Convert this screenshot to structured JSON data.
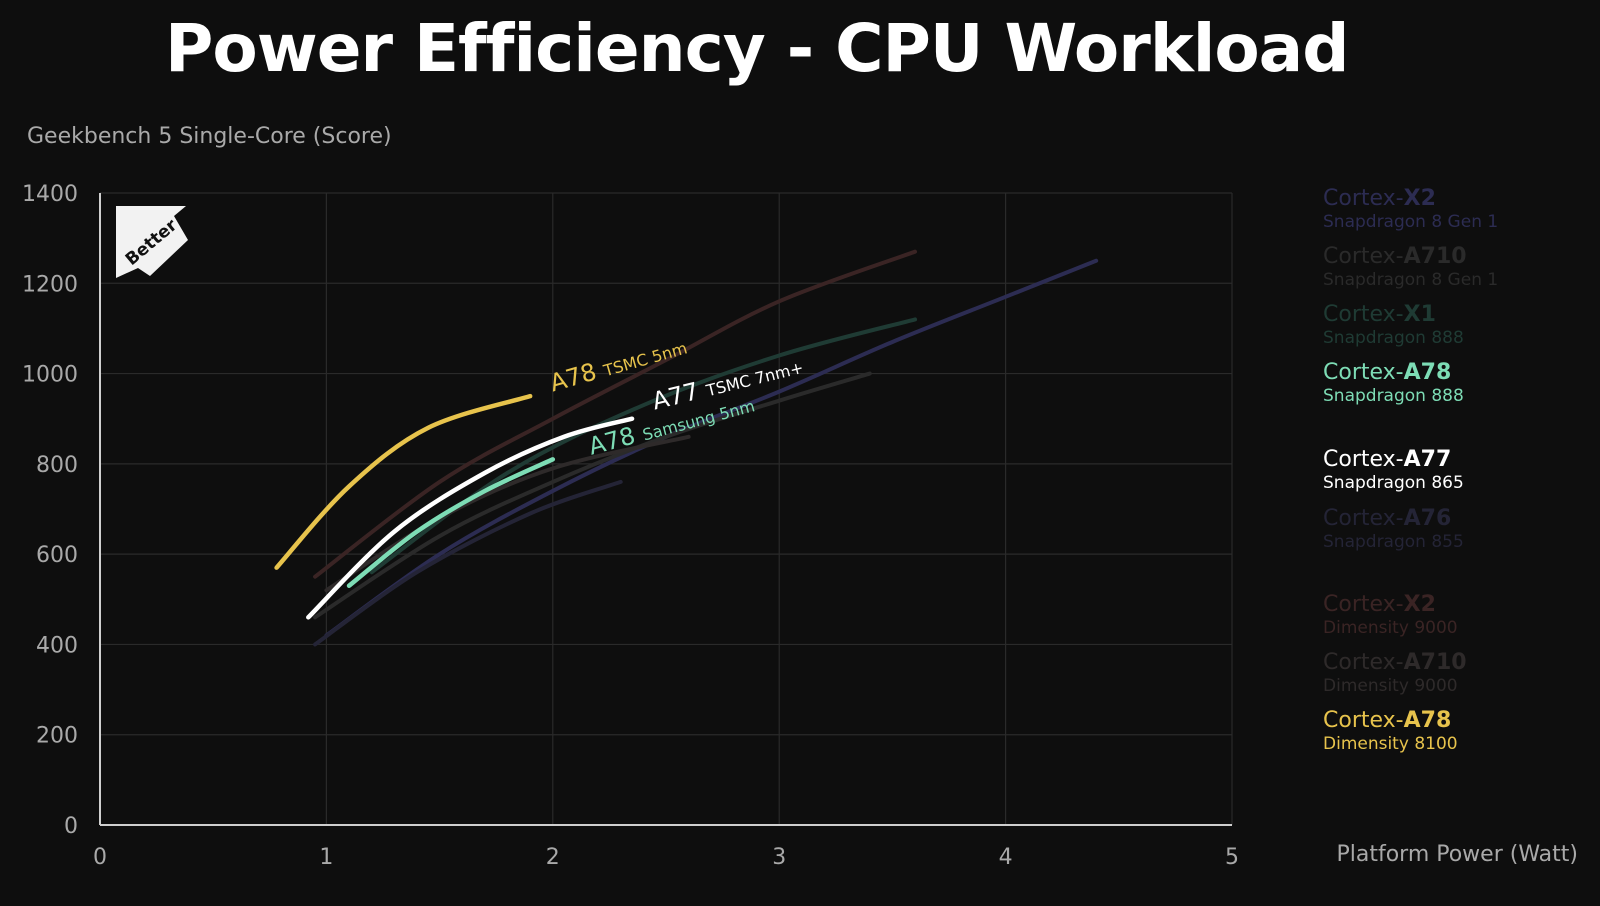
{
  "title": "Power Efficiency - CPU Workload",
  "badge": "Better",
  "colors": {
    "yellow": "#e7c34c",
    "white": "#ffffff",
    "green": "#7ddcb5",
    "faint_purple": "#2c2c52",
    "faint_red": "#3a2424",
    "faint_teal": "#1f3b34",
    "faint_gray": "#2a2a2a"
  },
  "chart_data": {
    "type": "line",
    "ylabel": "Geekbench 5 Single-Core (Score)",
    "xlabel": "Platform Power (Watt)",
    "xlim": [
      0,
      5
    ],
    "ylim": [
      0,
      1400
    ],
    "xticks": [
      "0",
      "1",
      "2",
      "3",
      "4",
      "5"
    ],
    "yticks": [
      "0",
      "200",
      "400",
      "600",
      "800",
      "1000",
      "1200",
      "1400"
    ],
    "grid": true,
    "legend_position": "right",
    "series": [
      {
        "core": "Cortex-",
        "core_bold": "X2",
        "soc": "Snapdragon 8 Gen 1",
        "highlight": false,
        "color": "#2c2c52",
        "x": [
          1.0,
          1.5,
          2.0,
          2.5,
          3.0,
          3.5,
          4.0,
          4.4
        ],
        "y": [
          420,
          600,
          740,
          860,
          960,
          1070,
          1170,
          1250
        ]
      },
      {
        "core": "Cortex-",
        "core_bold": "A710",
        "soc": "Snapdragon 8 Gen 1",
        "highlight": false,
        "color": "#2a2a2a",
        "x": [
          0.95,
          1.5,
          2.0,
          2.5,
          3.0,
          3.4
        ],
        "y": [
          460,
          640,
          760,
          860,
          940,
          1000
        ]
      },
      {
        "core": "Cortex-",
        "core_bold": "X1",
        "soc": "Snapdragon 888",
        "highlight": false,
        "color": "#1f3b34",
        "x": [
          1.2,
          1.8,
          2.4,
          3.0,
          3.6
        ],
        "y": [
          560,
          780,
          930,
          1040,
          1120
        ]
      },
      {
        "core": "Cortex-",
        "core_bold": "A78",
        "soc": "Snapdragon 888",
        "highlight": true,
        "color": "#7ddcb5",
        "x": [
          1.1,
          1.4,
          1.7,
          2.0
        ],
        "y": [
          530,
          650,
          740,
          810
        ]
      },
      {
        "core": "Cortex-",
        "core_bold": "A77",
        "soc": "Snapdragon 865",
        "highlight": true,
        "color": "#ffffff",
        "x": [
          0.92,
          1.3,
          1.7,
          2.05,
          2.35
        ],
        "y": [
          460,
          650,
          780,
          860,
          900
        ]
      },
      {
        "core": "Cortex-",
        "core_bold": "A76",
        "soc": "Snapdragon 855",
        "highlight": false,
        "color": "#242436",
        "x": [
          0.95,
          1.4,
          1.9,
          2.3
        ],
        "y": [
          400,
          560,
          690,
          760
        ]
      },
      {
        "core": "Cortex-",
        "core_bold": "X2",
        "soc": "Dimensity 9000",
        "highlight": false,
        "color": "#3a2424",
        "x": [
          0.95,
          1.5,
          2.0,
          2.5,
          3.0,
          3.6
        ],
        "y": [
          550,
          760,
          900,
          1030,
          1160,
          1270
        ]
      },
      {
        "core": "Cortex-",
        "core_bold": "A710",
        "soc": "Dimensity 9000",
        "highlight": false,
        "color": "#2e2a2a",
        "x": [
          1.0,
          1.5,
          2.0,
          2.6
        ],
        "y": [
          520,
          680,
          790,
          860
        ]
      },
      {
        "core": "Cortex-",
        "core_bold": "A78",
        "soc": "Dimensity 8100",
        "highlight": true,
        "color": "#e7c34c",
        "x": [
          0.78,
          1.1,
          1.45,
          1.9
        ],
        "y": [
          570,
          750,
          880,
          950
        ]
      }
    ],
    "annotations": [
      {
        "main": "A78",
        "sub": "TSMC 5nm",
        "color": "#e7c34c",
        "x": 2.0,
        "y": 960,
        "angle": -16
      },
      {
        "main": "A77",
        "sub": "TSMC 7nm+",
        "color": "#ffffff",
        "x": 2.45,
        "y": 920,
        "angle": -14
      },
      {
        "main": "A78",
        "sub": "Samsung 5nm",
        "color": "#7ddcb5",
        "x": 2.17,
        "y": 820,
        "angle": -15
      }
    ]
  }
}
